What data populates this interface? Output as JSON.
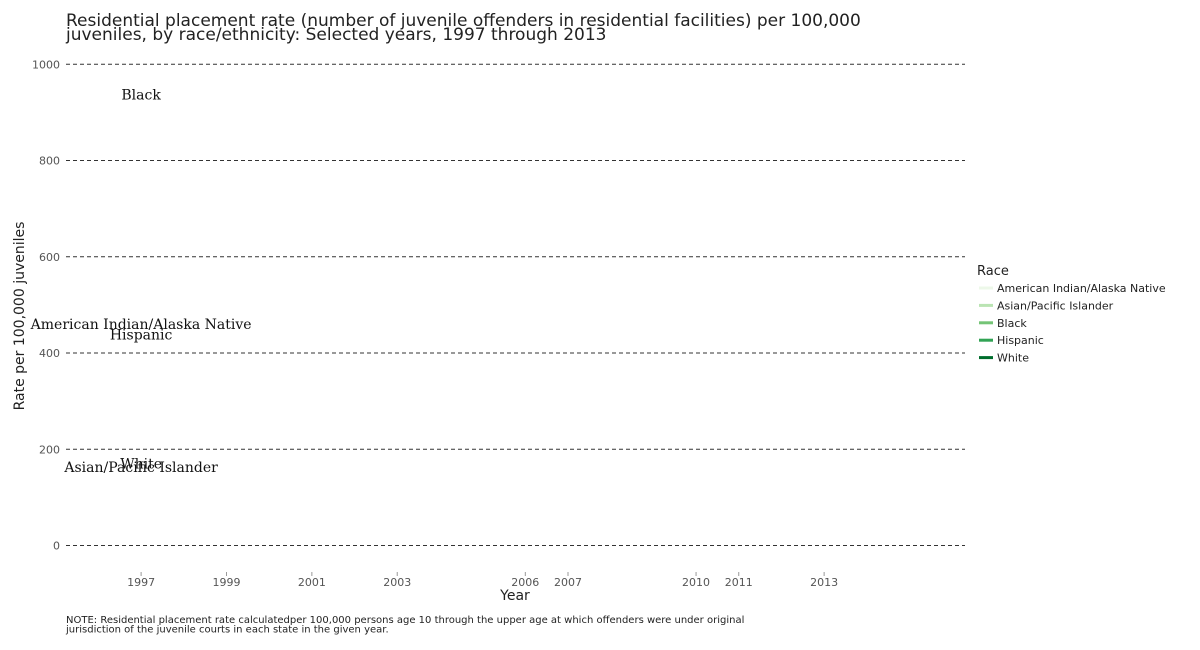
{
  "chart_data": {
    "type": "line",
    "title": "Residential placement rate (number of juvenile offenders in residential facilities) per 100,000 juveniles, by race/ethnicity: Selected years, 1997 through 2013",
    "title_lines": [
      "Residential placement rate (number of juvenile offenders in residential facilities) per 100,000",
      "juveniles, by race/ethnicity: Selected years, 1997 through 2013"
    ],
    "xlabel": "Year",
    "ylabel": "Rate per 100,000 juveniles",
    "x_ticks": [
      1997,
      1999,
      2001,
      2003,
      2006,
      2007,
      2010,
      2011,
      2013
    ],
    "y_ticks": [
      0,
      200,
      400,
      600,
      800,
      1000
    ],
    "xlim": [
      1995.1,
      2016.3
    ],
    "ylim": [
      -30,
      1040
    ],
    "grid": "horizontal dashed",
    "legend": {
      "title": "Race",
      "placement": "right"
    },
    "series": [
      {
        "name": "American Indian/Alaska Native",
        "color": "#edf8e9",
        "label_at": {
          "x": 1997,
          "y": 460
        }
      },
      {
        "name": "Asian/Pacific Islander",
        "color": "#bae4b3",
        "label_at": {
          "x": 1997,
          "y": 163
        }
      },
      {
        "name": "Black",
        "color": "#74c476",
        "label_at": {
          "x": 1997,
          "y": 937
        }
      },
      {
        "name": "Hispanic",
        "color": "#31a354",
        "label_at": {
          "x": 1997,
          "y": 438
        }
      },
      {
        "name": "White",
        "color": "#006d2c",
        "label_at": {
          "x": 1997,
          "y": 170
        }
      }
    ],
    "note_lines": [
      "NOTE: Residential placement rate calculatedper 100,000 persons age 10 through the upper age at which offenders were under original",
      "jurisdiction of the juvenile courts in each state in the given year."
    ]
  }
}
